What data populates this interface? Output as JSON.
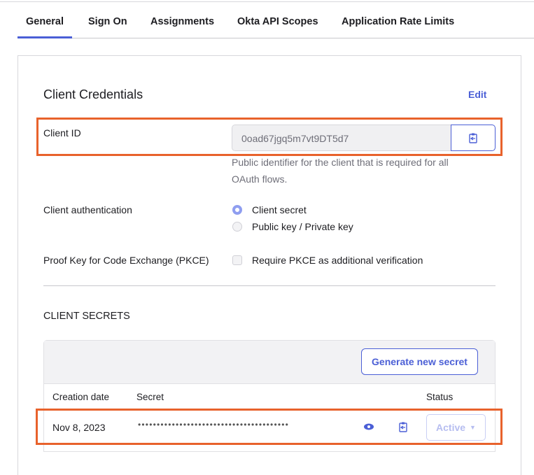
{
  "tabs": [
    {
      "label": "General",
      "active": true
    },
    {
      "label": "Sign On"
    },
    {
      "label": "Assignments"
    },
    {
      "label": "Okta API Scopes"
    },
    {
      "label": "Application Rate Limits"
    }
  ],
  "credentials": {
    "title": "Client Credentials",
    "edit": "Edit",
    "client_id_label": "Client ID",
    "client_id_value": "0oad67jgq5m7vt9DT5d7",
    "client_id_help": "Public identifier for the client that is required for all OAuth flows.",
    "auth_label": "Client authentication",
    "auth_options": [
      {
        "label": "Client secret",
        "selected": true
      },
      {
        "label": "Public key / Private key",
        "selected": false
      }
    ],
    "pkce_label": "Proof Key for Code Exchange (PKCE)",
    "pkce_option": "Require PKCE as additional verification",
    "pkce_checked": false
  },
  "secrets": {
    "title": "CLIENT SECRETS",
    "generate": "Generate new secret",
    "columns": [
      "Creation date",
      "Secret",
      "Status"
    ],
    "rows": [
      {
        "date": "Nov 8, 2023",
        "secret": "••••••••••••••••••••••••••••••••••••••••",
        "status": "Active"
      }
    ]
  },
  "colors": {
    "accent": "#4b5fd6",
    "highlight": "#e8622c"
  }
}
